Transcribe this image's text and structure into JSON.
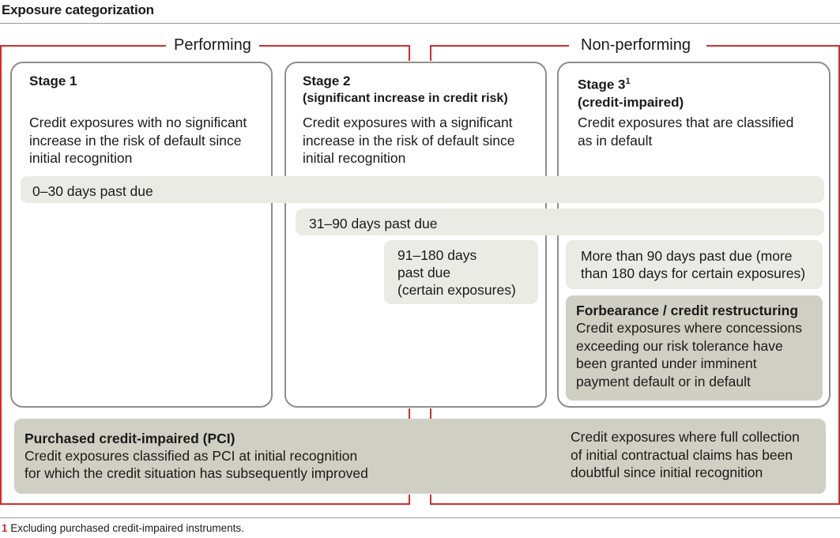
{
  "title": "Exposure categorization",
  "groups": {
    "performing": "Performing",
    "non_performing": "Non-performing"
  },
  "stages": [
    {
      "title": "Stage 1",
      "subtitle": "",
      "desc": [
        "Credit exposures with no significant",
        "increase in the risk of default since",
        "initial recognition"
      ]
    },
    {
      "title": "Stage 2",
      "subtitle": "(significant increase in credit risk)",
      "desc": [
        "Credit exposures with a significant",
        "increase in the risk of default since",
        "initial recognition"
      ]
    },
    {
      "title": "Stage 3",
      "title_sup": "1",
      "subtitle": "(credit-impaired)",
      "desc": [
        "Credit exposures that are classified",
        "as in default"
      ]
    }
  ],
  "past_due": {
    "d0_30": "0–30 days past due",
    "d31_90": "31–90 days past due",
    "d91_180": [
      "91–180 days",
      "past due",
      "(certain exposures)"
    ],
    "more90": [
      "More than 90 days past due (more",
      "than 180 days for certain exposures)"
    ]
  },
  "forbearance": {
    "title": "Forbearance / credit restructuring",
    "desc": [
      "Credit exposures where concessions",
      "exceeding our risk tolerance have",
      "been granted under imminent",
      "payment default or in default"
    ]
  },
  "pci": {
    "title": "Purchased credit-impaired (PCI)",
    "left": [
      "Credit exposures classified as PCI at initial recognition",
      "for which the credit situation has subsequently improved"
    ],
    "right": [
      "Credit exposures where full collection",
      "of initial contractual claims has been",
      "doubtful since initial recognition"
    ]
  },
  "footnote": {
    "num": "1",
    "text": "Excluding purchased credit-impaired instruments."
  },
  "colors": {
    "accent_red": "#d42c2c",
    "light_bar": "#ebebe6",
    "dark_bar": "#cfcfc4",
    "stage_border": "#8e8e8e"
  }
}
